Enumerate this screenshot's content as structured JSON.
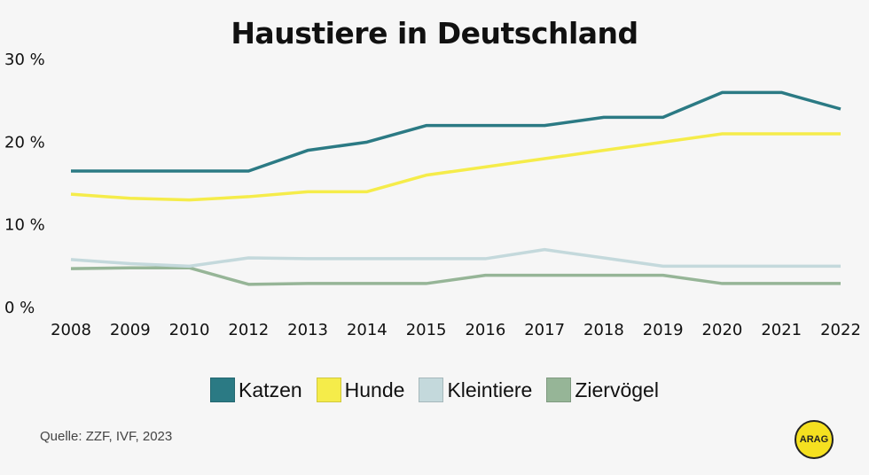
{
  "chart_data": {
    "type": "line",
    "title": "Haustiere in Deutschland",
    "categories": [
      "2008",
      "2009",
      "2010",
      "2012",
      "2013",
      "2014",
      "2015",
      "2016",
      "2017",
      "2018",
      "2019",
      "2020",
      "2021",
      "2022"
    ],
    "ylim": [
      0,
      30
    ],
    "yticks": [
      0,
      10,
      20,
      30
    ],
    "ytick_labels": [
      "0 %",
      "10 %",
      "20 %",
      "30 %"
    ],
    "grid": false,
    "legend_position": "bottom",
    "series": [
      {
        "name": "Katzen",
        "color": "#2b7a84",
        "values": [
          16.5,
          16.5,
          16.5,
          16.5,
          19,
          20,
          22,
          22,
          22,
          23,
          23,
          26,
          26,
          24
        ]
      },
      {
        "name": "Hunde",
        "color": "#f5ec4a",
        "values": [
          13.7,
          13.2,
          13,
          13.4,
          14,
          14,
          16,
          17,
          18,
          19,
          20,
          21,
          21,
          21
        ]
      },
      {
        "name": "Kleintiere",
        "color": "#c4d9dc",
        "values": [
          5.8,
          5.3,
          5,
          6,
          5.9,
          5.9,
          5.9,
          5.9,
          7,
          6,
          5,
          5,
          5,
          5
        ]
      },
      {
        "name": "Ziervögel",
        "color": "#96b597",
        "values": [
          4.7,
          4.8,
          4.8,
          2.8,
          2.9,
          2.9,
          2.9,
          3.9,
          3.9,
          3.9,
          3.9,
          2.9,
          2.9,
          2.9
        ]
      }
    ]
  },
  "source": "Quelle:  ZZF, IVF, 2023",
  "logo_text": "ARAG"
}
